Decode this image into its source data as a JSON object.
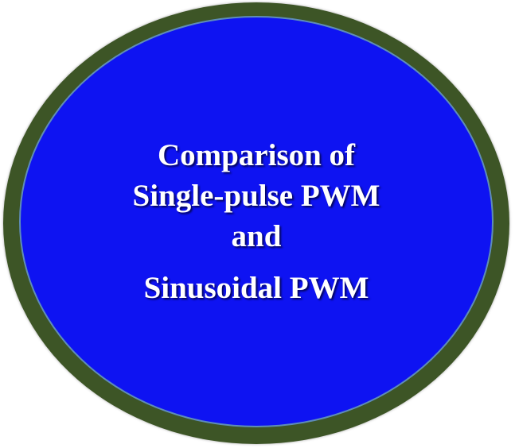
{
  "slide": {
    "title_lines": [
      "Comparison of",
      "Single-pulse PWM",
      "and",
      "Sinusoidal PWM"
    ]
  },
  "colors": {
    "background": "#ffffff",
    "outer_ring": "#3d5526",
    "inner_fill": "#0e13f2",
    "inner_border": "#5f8db8",
    "text": "#ffffff"
  }
}
